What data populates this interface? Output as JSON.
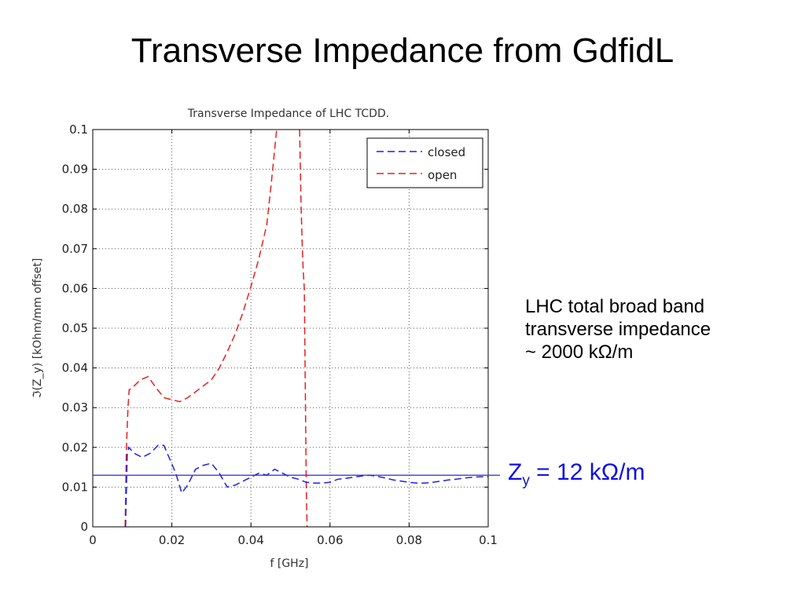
{
  "slide": {
    "title": "Transverse Impedance from GdfidL",
    "annotation_lines": [
      "LHC total broad band",
      "transverse impedance",
      "~ 2000 kΩ/m"
    ],
    "zy_label": {
      "symbol": "Z",
      "subscript": "y",
      "rest": " = 12 kΩ/m"
    }
  },
  "chart_data": {
    "type": "line",
    "title": "Transverse Impedance of LHC TCDD.",
    "xlabel": "f [GHz]",
    "ylabel": "ℑ(Z_y) [kOhm/mm offset]",
    "xlim": [
      0,
      0.1
    ],
    "ylim": [
      0,
      0.1
    ],
    "xticks": [
      0,
      0.02,
      0.04,
      0.06,
      0.08,
      0.1
    ],
    "xtick_labels": [
      "0",
      "0.02",
      "0.04",
      "0.06",
      "0.08",
      "0.1"
    ],
    "yticks": [
      0,
      0.01,
      0.02,
      0.03,
      0.04,
      0.05,
      0.06,
      0.07,
      0.08,
      0.09,
      0.1
    ],
    "ytick_labels": [
      "0",
      "0.01",
      "0.02",
      "0.03",
      "0.04",
      "0.05",
      "0.06",
      "0.07",
      "0.08",
      "0.09",
      "0.1"
    ],
    "grid": true,
    "legend_position": "top-right",
    "series": [
      {
        "name": "closed",
        "color": "#1f1fe8",
        "dash": "dashed",
        "x": [
          0.0083,
          0.0087,
          0.0091,
          0.0105,
          0.0125,
          0.0145,
          0.0165,
          0.018,
          0.0195,
          0.021,
          0.0225,
          0.024,
          0.026,
          0.028,
          0.03,
          0.032,
          0.034,
          0.036,
          0.038,
          0.04,
          0.042,
          0.044,
          0.046,
          0.048,
          0.05,
          0.052,
          0.054,
          0.056,
          0.058,
          0.06,
          0.062,
          0.064,
          0.066,
          0.068,
          0.07,
          0.072,
          0.074,
          0.076,
          0.078,
          0.08,
          0.082,
          0.084,
          0.086,
          0.088,
          0.09,
          0.092,
          0.094,
          0.096,
          0.098,
          0.1
        ],
        "values": [
          0.0,
          0.018,
          0.02,
          0.0185,
          0.0175,
          0.0185,
          0.0205,
          0.0205,
          0.017,
          0.0135,
          0.0085,
          0.0105,
          0.0145,
          0.0155,
          0.016,
          0.0135,
          0.01,
          0.0105,
          0.0115,
          0.0125,
          0.0135,
          0.013,
          0.0145,
          0.0135,
          0.0125,
          0.012,
          0.0112,
          0.011,
          0.011,
          0.0112,
          0.012,
          0.0122,
          0.0125,
          0.0128,
          0.013,
          0.0127,
          0.0123,
          0.0118,
          0.0115,
          0.0112,
          0.011,
          0.011,
          0.0112,
          0.0115,
          0.0118,
          0.012,
          0.0123,
          0.0125,
          0.0126,
          0.0126
        ]
      },
      {
        "name": "open",
        "color": "#e81f1f",
        "dash": "dashed",
        "x": [
          0.0082,
          0.0085,
          0.0089,
          0.0092,
          0.01,
          0.012,
          0.014,
          0.016,
          0.018,
          0.02,
          0.022,
          0.024,
          0.026,
          0.028,
          0.03,
          0.032,
          0.034,
          0.036,
          0.038,
          0.04,
          0.042,
          0.044,
          0.045,
          0.0455,
          0.046,
          0.0463,
          0.0465
        ],
        "values": [
          0.0,
          0.02,
          0.03,
          0.0345,
          0.035,
          0.037,
          0.0378,
          0.035,
          0.0325,
          0.032,
          0.0315,
          0.0325,
          0.034,
          0.0355,
          0.037,
          0.04,
          0.044,
          0.0485,
          0.054,
          0.0605,
          0.0675,
          0.076,
          0.085,
          0.09,
          0.095,
          0.098,
          0.1
        ]
      },
      {
        "name": "",
        "color": "#e81f1f",
        "dash": "dashed",
        "x": [
          0.0523,
          0.0525,
          0.0527,
          0.053,
          0.0532,
          0.0535,
          0.0537,
          0.054,
          0.0542
        ],
        "values": [
          0.1,
          0.09,
          0.08,
          0.07,
          0.065,
          0.06,
          0.04,
          0.01,
          0.0
        ]
      }
    ],
    "reference_line": {
      "value": 0.013,
      "color": "#2a2ad8"
    }
  }
}
